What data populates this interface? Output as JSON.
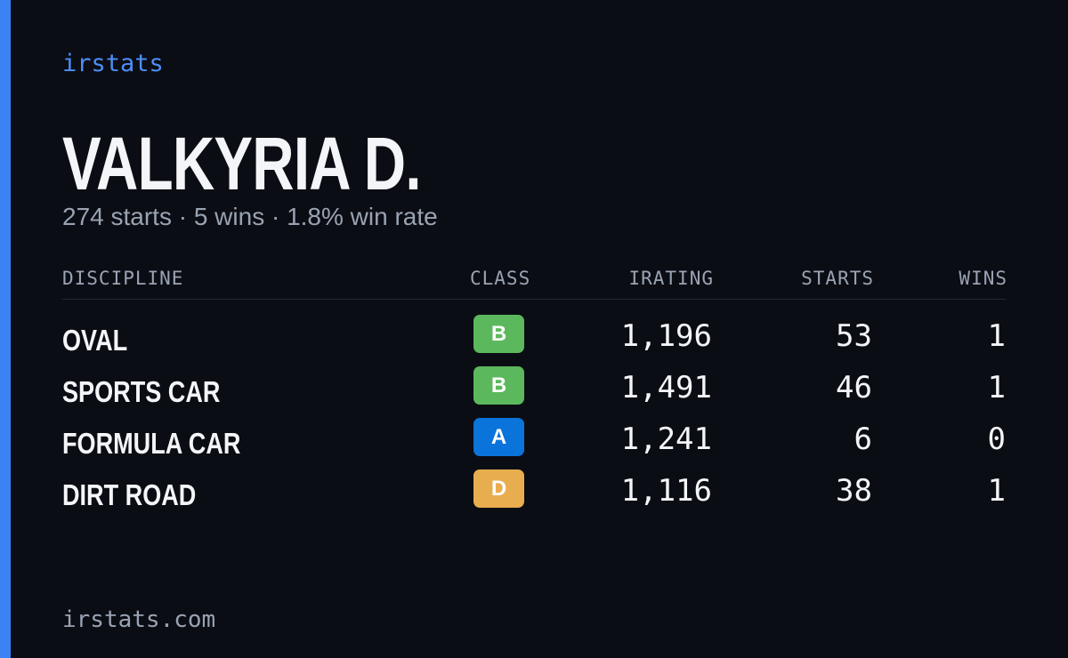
{
  "brand": "irstats",
  "name": "VALKYRIA D.",
  "summary": "274 starts · 5 wins · 1.8% win rate",
  "table": {
    "headers": [
      "DISCIPLINE",
      "CLASS",
      "IRATING",
      "STARTS",
      "WINS"
    ],
    "rows": [
      {
        "discipline": "OVAL",
        "class": "B",
        "class_color": "#5cb85c",
        "irating": "1,196",
        "starts": 53,
        "wins": 1
      },
      {
        "discipline": "SPORTS CAR",
        "class": "B",
        "class_color": "#5cb85c",
        "irating": "1,491",
        "starts": 46,
        "wins": 1
      },
      {
        "discipline": "FORMULA CAR",
        "class": "A",
        "class_color": "#0a74da",
        "irating": "1,241",
        "starts": 6,
        "wins": 0
      },
      {
        "discipline": "DIRT ROAD",
        "class": "D",
        "class_color": "#e8ad4e",
        "irating": "1,116",
        "starts": 38,
        "wins": 1
      }
    ]
  },
  "footer": "irstats.com"
}
